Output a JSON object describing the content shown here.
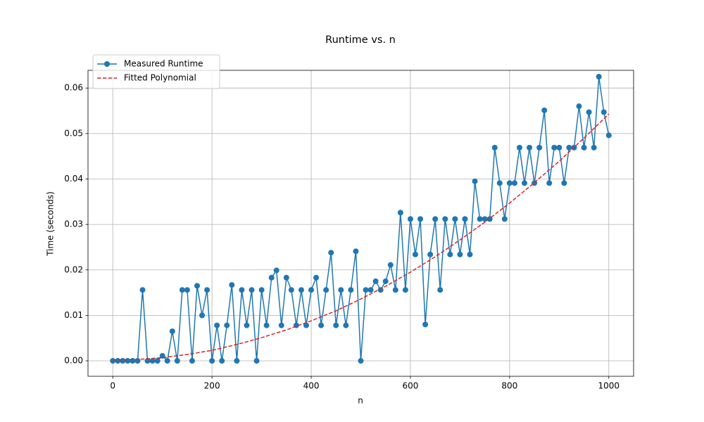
{
  "chart_data": {
    "type": "line",
    "title": "Runtime vs. n",
    "xlabel": "n",
    "ylabel": "Time (seconds)",
    "xlim": [
      -50,
      1050
    ],
    "ylim": [
      -0.0034,
      0.0639
    ],
    "xticks": [
      0,
      200,
      400,
      600,
      800,
      1000
    ],
    "yticks": [
      {
        "value": 0,
        "label": "0.00"
      },
      {
        "value": 0.01,
        "label": "0.01"
      },
      {
        "value": 0.02,
        "label": "0.02"
      },
      {
        "value": 0.03,
        "label": "0.03"
      },
      {
        "value": 0.04,
        "label": "0.04"
      },
      {
        "value": 0.05,
        "label": "0.05"
      },
      {
        "value": 0.06,
        "label": "0.06"
      }
    ],
    "grid": true,
    "legend": "upper left",
    "series": [
      {
        "name": "Measured Runtime",
        "color": "#1f77b4",
        "marker": "o",
        "linestyle": "solid",
        "x": [
          0,
          10,
          20,
          30,
          40,
          50,
          60,
          70,
          80,
          90,
          100,
          110,
          120,
          130,
          140,
          150,
          160,
          170,
          180,
          190,
          200,
          210,
          220,
          230,
          240,
          250,
          260,
          270,
          280,
          290,
          300,
          310,
          320,
          330,
          340,
          350,
          360,
          370,
          380,
          390,
          400,
          410,
          420,
          430,
          440,
          450,
          460,
          470,
          480,
          490,
          500,
          510,
          520,
          530,
          540,
          550,
          560,
          570,
          580,
          590,
          600,
          610,
          620,
          630,
          640,
          650,
          660,
          670,
          680,
          690,
          700,
          710,
          720,
          730,
          740,
          750,
          760,
          770,
          780,
          790,
          800,
          810,
          820,
          830,
          840,
          850,
          860,
          870,
          880,
          890,
          900,
          910,
          920,
          930,
          940,
          950,
          960,
          970,
          980,
          990,
          1000
        ],
        "values": [
          0,
          0,
          0,
          0,
          0,
          0,
          0.0156,
          0,
          0,
          0,
          0.0011,
          0,
          0.0065,
          0,
          0.0156,
          0.0156,
          0,
          0.0165,
          0.01,
          0.0156,
          0,
          0.0078,
          0,
          0.0078,
          0.0167,
          0,
          0.0156,
          0.0078,
          0.0156,
          0,
          0.0156,
          0.0078,
          0.0183,
          0.0199,
          0.0078,
          0.0183,
          0.0156,
          0.0078,
          0.0156,
          0.0078,
          0.0156,
          0.0183,
          0.0078,
          0.0156,
          0.0238,
          0.0078,
          0.0156,
          0.0078,
          0.0156,
          0.0241,
          0,
          0.0156,
          0.0156,
          0.0175,
          0.0156,
          0.0175,
          0.0211,
          0.0156,
          0.0326,
          0.0156,
          0.0312,
          0.0234,
          0.0312,
          0.008,
          0.0234,
          0.0312,
          0.0156,
          0.0312,
          0.0234,
          0.0312,
          0.0234,
          0.0312,
          0.0234,
          0.0395,
          0.0312,
          0.0312,
          0.0312,
          0.0469,
          0.0391,
          0.0312,
          0.0391,
          0.0391,
          0.0469,
          0.0391,
          0.0469,
          0.0391,
          0.0469,
          0.0551,
          0.0391,
          0.0469,
          0.0469,
          0.0391,
          0.0469,
          0.0469,
          0.056,
          0.0469,
          0.0547,
          0.0469,
          0.0625,
          0.0547,
          0.0496
        ]
      },
      {
        "name": "Fitted Polynomial",
        "color": "#d62728",
        "marker": "none",
        "linestyle": "dashed",
        "x": [
          0,
          50,
          100,
          150,
          200,
          250,
          300,
          350,
          400,
          450,
          500,
          550,
          600,
          650,
          700,
          750,
          800,
          850,
          900,
          950,
          1000
        ],
        "values": [
          0.0002,
          0.0003,
          0.0007,
          0.0014,
          0.0023,
          0.0036,
          0.0051,
          0.0068,
          0.0088,
          0.011,
          0.0136,
          0.0164,
          0.0195,
          0.0229,
          0.0266,
          0.0305,
          0.0347,
          0.0392,
          0.0439,
          0.049,
          0.0543
        ]
      }
    ]
  }
}
